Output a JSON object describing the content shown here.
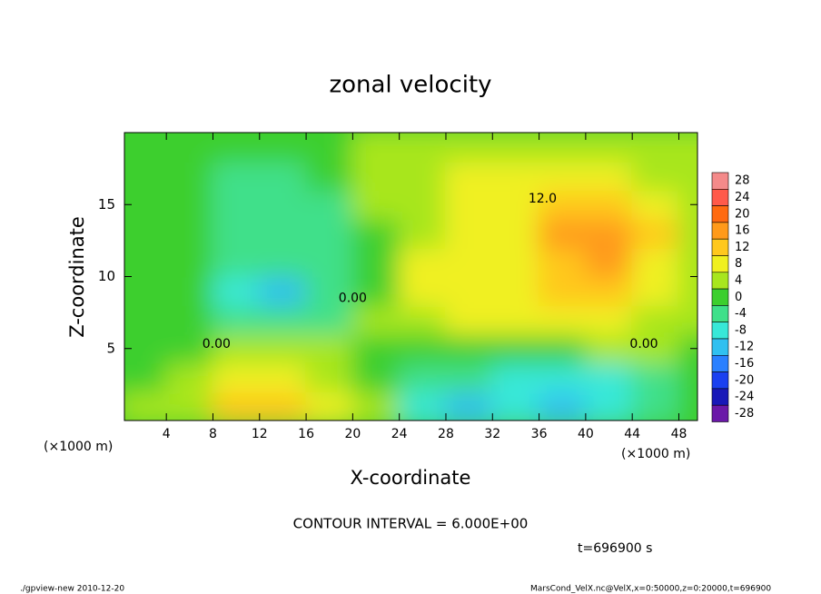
{
  "chart_data": {
    "type": "contour",
    "title": "zonal velocity",
    "x_label": "X-coordinate",
    "y_label": "Z-coordinate",
    "x_unit": "(×1000 m)",
    "y_unit": "(×1000 m)",
    "xlim": [
      0.4,
      49.6
    ],
    "ylim": [
      0,
      20
    ],
    "xticks": [
      4,
      8,
      12,
      16,
      20,
      24,
      28,
      32,
      36,
      40,
      44,
      48
    ],
    "yticks": [
      5,
      10,
      15
    ],
    "x": [
      2,
      6,
      10,
      14,
      18,
      22,
      26,
      30,
      34,
      38,
      42,
      46,
      50
    ],
    "z": [
      1,
      3,
      5,
      7,
      9,
      11,
      13,
      15,
      17,
      19
    ],
    "values": [
      [
        2,
        4,
        10,
        10,
        6,
        2,
        -10,
        -12,
        -10,
        -14,
        -10,
        -6,
        -2
      ],
      [
        0,
        4,
        6,
        6,
        4,
        0,
        -4,
        -6,
        -8,
        -10,
        -8,
        -6,
        0
      ],
      [
        -2,
        0,
        2,
        2,
        2,
        0,
        0,
        0,
        0,
        0,
        2,
        2,
        0
      ],
      [
        0,
        0,
        -4,
        -6,
        -4,
        2,
        4,
        6,
        6,
        6,
        6,
        4,
        2
      ],
      [
        0,
        -2,
        -8,
        -12,
        -6,
        0,
        8,
        8,
        8,
        10,
        10,
        6,
        4
      ],
      [
        0,
        -2,
        -6,
        -6,
        -4,
        0,
        6,
        6,
        8,
        12,
        14,
        8,
        4
      ],
      [
        0,
        -2,
        -6,
        -6,
        -4,
        0,
        4,
        6,
        8,
        14,
        16,
        10,
        4
      ],
      [
        0,
        -2,
        -6,
        -6,
        -4,
        2,
        4,
        6,
        6,
        12,
        12,
        8,
        4
      ],
      [
        0,
        0,
        -4,
        -4,
        -2,
        2,
        4,
        6,
        6,
        6,
        6,
        4,
        2
      ],
      [
        0,
        0,
        -2,
        -2,
        0,
        2,
        4,
        4,
        4,
        4,
        4,
        2,
        2
      ]
    ],
    "colorbar": {
      "ticks": [
        28,
        24,
        20,
        16,
        12,
        8,
        4,
        0,
        -4,
        -8,
        -12,
        -16,
        -20,
        -24,
        -28
      ],
      "colors": [
        "#f48a8a",
        "#ff5a4a",
        "#ff6a10",
        "#ff9a1a",
        "#ffc81e",
        "#f0f020",
        "#a8e61e",
        "#3ccf2e",
        "#3fe08a",
        "#38e8d8",
        "#30c0f0",
        "#2a80ff",
        "#1a40f0",
        "#1818b8",
        "#6a18a8"
      ]
    },
    "contour_labels": [
      {
        "text": "12.0",
        "x": 36.3,
        "z": 15.4
      },
      {
        "text": "0.00",
        "x": 20.0,
        "z": 8.5
      },
      {
        "text": "0.00",
        "x": 8.3,
        "z": 5.3
      },
      {
        "text": "0.00",
        "x": 45.0,
        "z": 5.3
      }
    ],
    "annotation": "CONTOUR INTERVAL = 6.000E+00",
    "time_label": "t=696900 s",
    "footer_left": "./gpview-new  2010-12-20",
    "footer_right": "MarsCond_VelX.nc@VelX,x=0:50000,z=0:20000,t=696900"
  }
}
